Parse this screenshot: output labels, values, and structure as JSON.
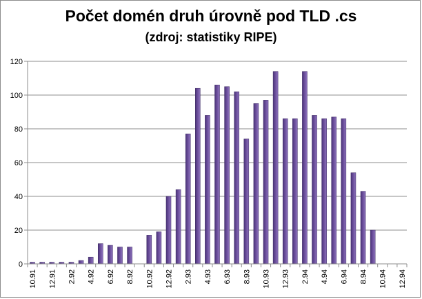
{
  "chart_data": {
    "type": "bar",
    "title": "Počet domén druh úrovně pod TLD .cs",
    "subtitle": "(zdroj: statistiky RIPE)",
    "xlabel": "",
    "ylabel": "",
    "ylim": [
      0,
      120
    ],
    "yticks": [
      0,
      20,
      40,
      60,
      80,
      100,
      120
    ],
    "grid": "horizontal",
    "legend": "none",
    "bar_color": "#6b4e9b",
    "categories": [
      "10.91",
      "11.91",
      "12.91",
      "1.92",
      "2.92",
      "3.92",
      "4.92",
      "5.92",
      "6.92",
      "7.92",
      "8.92",
      "9.92",
      "10.92",
      "11.92",
      "12.92",
      "1.93",
      "2.93",
      "3.93",
      "4.93",
      "5.93",
      "6.93",
      "7.93",
      "8.93",
      "9.93",
      "10.93",
      "11.93",
      "12.93",
      "1.94",
      "2.94",
      "3.94",
      "4.94",
      "5.94",
      "6.94",
      "7.94",
      "8.94",
      "9.94",
      "10.94",
      "11.94",
      "12.94"
    ],
    "tick_labels": [
      "10.91",
      "12.91",
      "2.92",
      "4.92",
      "6.92",
      "8.92",
      "10.92",
      "12.92",
      "2.93",
      "4.93",
      "6.93",
      "8.93",
      "10.93",
      "12.93",
      "2.94",
      "4.94",
      "6.94",
      "8.94",
      "10.94",
      "12.94"
    ],
    "values": [
      1,
      1,
      1,
      1,
      1,
      2,
      4,
      12,
      11,
      10,
      10,
      0,
      17,
      19,
      40,
      44,
      77,
      104,
      88,
      106,
      105,
      102,
      74,
      95,
      97,
      114,
      86,
      86,
      114,
      88,
      86,
      87,
      86,
      54,
      43,
      20,
      0,
      0,
      0
    ]
  }
}
